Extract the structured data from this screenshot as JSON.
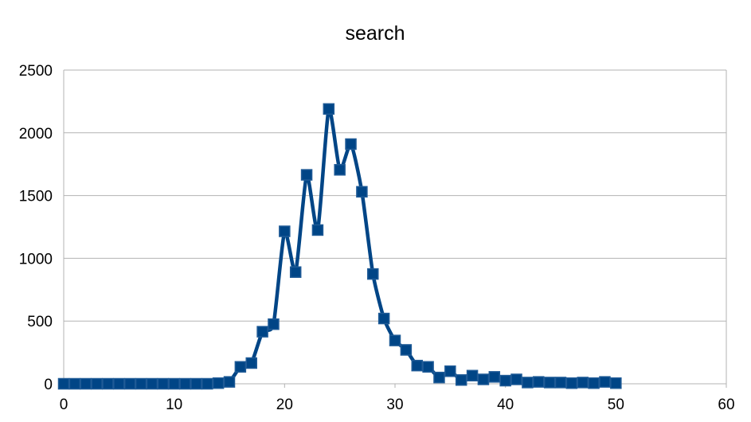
{
  "chart_data": {
    "type": "line",
    "title": "search",
    "xlabel": "",
    "ylabel": "",
    "xlim": [
      0,
      60
    ],
    "ylim": [
      0,
      2500
    ],
    "xticks": [
      0,
      10,
      20,
      30,
      40,
      50,
      60
    ],
    "yticks": [
      0,
      500,
      1000,
      1500,
      2000,
      2500
    ],
    "grid": "horizontal",
    "legend": "none",
    "marker": "square",
    "smooth": true,
    "colors": {
      "line": "#004586",
      "marker_edge": "#1e5a96",
      "grid": "#b3b3b3",
      "axis": "#b3b3b3"
    },
    "series": [
      {
        "x": [
          0,
          1,
          2,
          3,
          4,
          5,
          6,
          7,
          8,
          9,
          10,
          11,
          12,
          13,
          14,
          15,
          16,
          17,
          18,
          19,
          20,
          21,
          22,
          23,
          24,
          25,
          26,
          27,
          28,
          29,
          30,
          31,
          32,
          33,
          34,
          35,
          36,
          37,
          38,
          39,
          40,
          41,
          42,
          43,
          44,
          45,
          46,
          47,
          48,
          49,
          50
        ],
        "values": [
          0,
          0,
          0,
          0,
          0,
          0,
          0,
          0,
          0,
          0,
          0,
          0,
          0,
          0,
          5,
          15,
          135,
          165,
          415,
          475,
          1215,
          890,
          1665,
          1225,
          2190,
          1705,
          1910,
          1530,
          875,
          520,
          345,
          270,
          145,
          135,
          50,
          100,
          30,
          65,
          35,
          55,
          25,
          35,
          10,
          15,
          10,
          10,
          5,
          10,
          5,
          15,
          5
        ]
      }
    ]
  }
}
